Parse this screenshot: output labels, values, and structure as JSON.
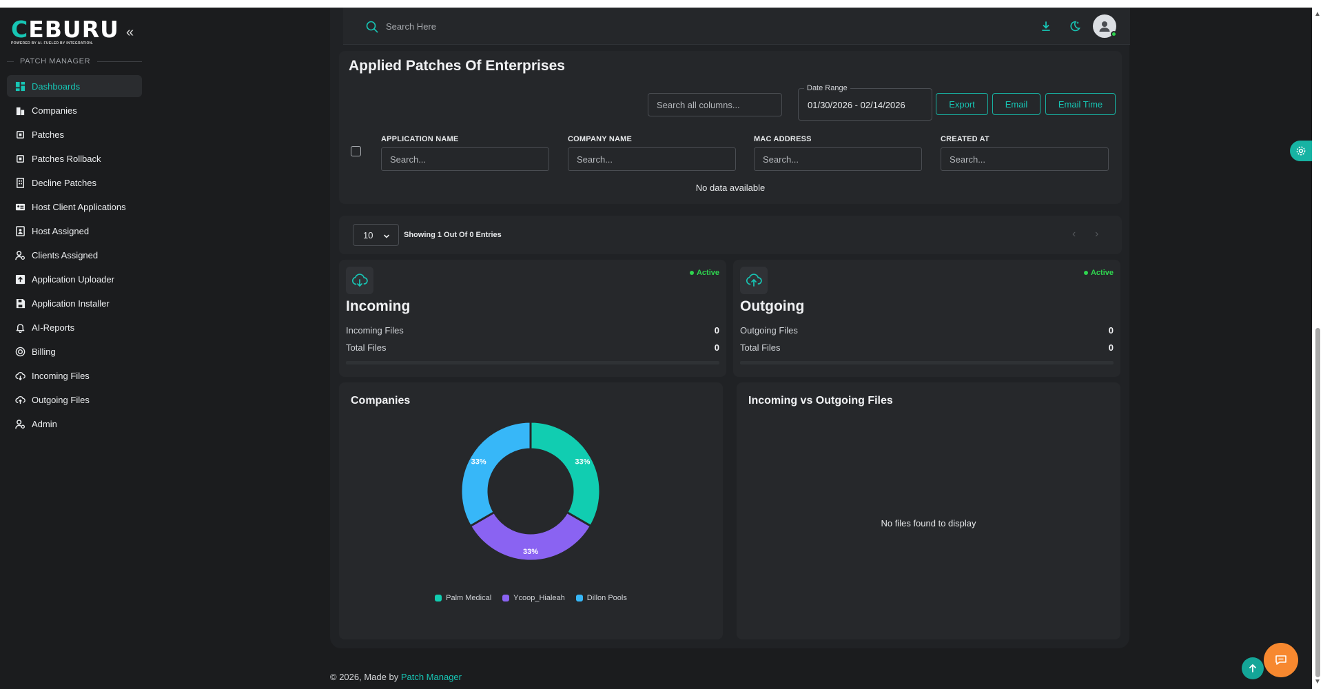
{
  "brand": {
    "logo_main": "CEBURU",
    "tagline": "POWERED BY AI. FUELED BY INTEGRATION."
  },
  "sidebar": {
    "section_title": "PATCH MANAGER",
    "items": [
      {
        "label": "Dashboards",
        "icon": "grid-icon",
        "active": true
      },
      {
        "label": "Companies",
        "icon": "building-icon"
      },
      {
        "label": "Patches",
        "icon": "chip-icon"
      },
      {
        "label": "Patches Rollback",
        "icon": "chip-icon"
      },
      {
        "label": "Decline Patches",
        "icon": "building-grid-icon"
      },
      {
        "label": "Host Client Applications",
        "icon": "id-card-icon"
      },
      {
        "label": "Host Assigned",
        "icon": "portrait-icon"
      },
      {
        "label": "Clients Assigned",
        "icon": "user-gear-icon"
      },
      {
        "label": "Application Uploader",
        "icon": "upload-box-icon"
      },
      {
        "label": "Application Installer",
        "icon": "save-icon"
      },
      {
        "label": "AI-Reports",
        "icon": "bell-icon"
      },
      {
        "label": "Billing",
        "icon": "dollar-circle-icon"
      },
      {
        "label": "Incoming Files",
        "icon": "cloud-download-icon"
      },
      {
        "label": "Outgoing Files",
        "icon": "cloud-upload-icon"
      },
      {
        "label": "Admin",
        "icon": "user-gear-icon"
      }
    ]
  },
  "header": {
    "search_placeholder": "Search Here"
  },
  "patches": {
    "title": "Applied Patches Of Enterprises",
    "search_all_placeholder": "Search all columns...",
    "date_range_label": "Date Range",
    "date_range_value": "01/30/2026 - 02/14/2026",
    "buttons": {
      "export": "Export",
      "email": "Email",
      "email_time": "Email Time"
    },
    "columns": [
      {
        "label": "APPLICATION NAME",
        "placeholder": "Search..."
      },
      {
        "label": "COMPANY NAME",
        "placeholder": "Search..."
      },
      {
        "label": "MAC ADDRESS",
        "placeholder": "Search..."
      },
      {
        "label": "CREATED AT",
        "placeholder": "Search..."
      }
    ],
    "empty_text": "No data available"
  },
  "pagination": {
    "page_size": "10",
    "showing": "Showing 1 Out Of 0 Entries",
    "prev": "‹",
    "next": "›"
  },
  "stats": {
    "incoming": {
      "status": "Active",
      "title": "Incoming",
      "rows": [
        {
          "label": "Incoming Files",
          "value": "0"
        },
        {
          "label": "Total Files",
          "value": "0"
        }
      ]
    },
    "outgoing": {
      "status": "Active",
      "title": "Outgoing",
      "rows": [
        {
          "label": "Outgoing Files",
          "value": "0"
        },
        {
          "label": "Total Files",
          "value": "0"
        }
      ]
    }
  },
  "charts": {
    "companies_title": "Companies",
    "io_title": "Incoming vs Outgoing Files",
    "io_empty": "No files found to display"
  },
  "chart_data": {
    "type": "pie",
    "donut": true,
    "title": "Companies",
    "categories": [
      "Palm Medical",
      "Ycoop_Hialeah",
      "Dillon Pools"
    ],
    "values": [
      33,
      33,
      33
    ],
    "labels": [
      "33%",
      "33%",
      "33%"
    ],
    "colors": [
      "#11cdb1",
      "#8a63f2",
      "#37b7f8"
    ],
    "legend": "bottom"
  },
  "footer": {
    "text": "© 2026, Made by",
    "link": "Patch Manager"
  },
  "colors": {
    "accent": "#17c5b4",
    "active_green": "#2fd54f",
    "chat_orange": "#f7882f"
  }
}
